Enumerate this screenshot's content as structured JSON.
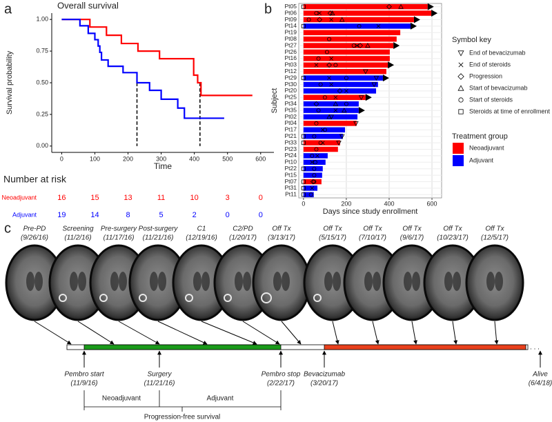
{
  "chart_data": [
    {
      "type": "step",
      "panel_label": "a",
      "title": "Overall survival",
      "xlabel": "Time",
      "ylabel": "Survival probability",
      "xlim": [
        -30,
        640
      ],
      "xticks": [
        0,
        100,
        200,
        300,
        400,
        500,
        600
      ],
      "ylim": [
        -0.05,
        1.05
      ],
      "yticks": [
        {
          "value": 0,
          "label": "0.00"
        },
        {
          "value": 0.25,
          "label": "0.25"
        },
        {
          "value": 0.5,
          "label": "0.50"
        },
        {
          "value": 0.75,
          "label": "0.75"
        },
        {
          "value": 1,
          "label": "1.00"
        }
      ],
      "series": [
        {
          "name": "Neoadjuvant",
          "color": "#ff0000",
          "x": [
            0,
            85,
            135,
            180,
            230,
            295,
            398,
            410,
            420,
            575
          ],
          "values": [
            1,
            0.94,
            0.875,
            0.81,
            0.75,
            0.69,
            0.56,
            0.5,
            0.4,
            0.4
          ]
        },
        {
          "name": "Adjuvant",
          "color": "#0000ff",
          "x": [
            0,
            55,
            80,
            100,
            110,
            115,
            120,
            140,
            185,
            227,
            265,
            300,
            350,
            370,
            490
          ],
          "values": [
            1,
            0.95,
            0.89,
            0.84,
            0.79,
            0.74,
            0.68,
            0.63,
            0.58,
            0.5,
            0.44,
            0.37,
            0.3,
            0.22,
            0.22
          ]
        }
      ],
      "medians": [
        227,
        417
      ],
      "risk_table": {
        "title": "Number at risk",
        "x": [
          0,
          100,
          200,
          300,
          400,
          500,
          600
        ],
        "rows": [
          {
            "name": "Neoadjuvant",
            "color": "#ff0000",
            "values": [
              16,
              15,
              13,
              11,
              10,
              3,
              0
            ]
          },
          {
            "name": "Adjuvant",
            "color": "#0000ff",
            "values": [
              19,
              14,
              8,
              5,
              2,
              0,
              0
            ]
          }
        ]
      }
    },
    {
      "type": "swimmer",
      "panel_label": "b",
      "xlabel": "Days since study enrollment",
      "ylabel": "Subject",
      "xlim": [
        -22,
        645
      ],
      "xticks": [
        0,
        200,
        400,
        600
      ],
      "grid": true,
      "subjects": [
        {
          "name": "Pt05",
          "color": "#ff0000",
          "days": 580,
          "ongoing": true,
          "events": {
            "square": [
              0
            ],
            "diamond": [
              400
            ],
            "triangle": [
              455
            ]
          }
        },
        {
          "name": "Pt06",
          "color": "#ff0000",
          "days": 597,
          "ongoing": true,
          "events": {
            "circle": [
              60
            ],
            "x": [
              75
            ],
            "diamond": [
              125
            ],
            "triangle": [
              135
            ]
          }
        },
        {
          "name": "Pt09",
          "color": "#ff0000",
          "days": 516,
          "ongoing": true,
          "events": {
            "circle": [
              25
            ],
            "diamond": [
              75
            ],
            "x": [
              130
            ],
            "triangle": [
              180
            ]
          }
        },
        {
          "name": "Pt14",
          "color": "#0000ff",
          "days": 500,
          "ongoing": true,
          "events": {
            "square": [
              0
            ],
            "circle": [
              260
            ],
            "x": [
              350
            ]
          }
        },
        {
          "name": "Pt19",
          "color": "#ff0000",
          "days": 452,
          "ongoing": false,
          "events": {}
        },
        {
          "name": "Pt08",
          "color": "#ff0000",
          "days": 435,
          "ongoing": false,
          "events": {
            "circle": [
              120
            ]
          }
        },
        {
          "name": "Pt27",
          "color": "#ff0000",
          "days": 420,
          "ongoing": true,
          "events": {
            "circle": [
              235
            ],
            "x": [
              250
            ],
            "diamond": [
              265
            ],
            "triangle": [
              300
            ]
          }
        },
        {
          "name": "Pt26",
          "color": "#ff0000",
          "days": 403,
          "ongoing": false,
          "events": {
            "circle": [
              110
            ]
          }
        },
        {
          "name": "Pt16",
          "color": "#ff0000",
          "days": 403,
          "ongoing": false,
          "events": {
            "circle": [
              70
            ],
            "x": [
              130
            ]
          }
        },
        {
          "name": "Pt03",
          "color": "#ff0000",
          "days": 394,
          "ongoing": true,
          "events": {
            "x": [
              60
            ],
            "diamond": [
              120
            ],
            "circle": [
              150
            ]
          }
        },
        {
          "name": "Pt12",
          "color": "#ff0000",
          "days": 387,
          "ongoing": false,
          "events": {
            "triangle-down": [
              290
            ]
          }
        },
        {
          "name": "Pt29",
          "color": "#0000ff",
          "days": 371,
          "ongoing": true,
          "events": {
            "square": [
              0
            ],
            "x": [
              120
            ],
            "circle": [
              200
            ],
            "triangle-down": [
              340
            ]
          }
        },
        {
          "name": "Pt30",
          "color": "#0000ff",
          "days": 348,
          "ongoing": false,
          "events": {
            "circle": [
              80
            ],
            "x": [
              130
            ],
            "triangle-down": [
              330
            ]
          }
        },
        {
          "name": "Pt20",
          "color": "#0000ff",
          "days": 339,
          "ongoing": false,
          "events": {
            "diamond": [
              170
            ],
            "x": [
              200
            ]
          }
        },
        {
          "name": "Pt25",
          "color": "#ff0000",
          "days": 290,
          "ongoing": true,
          "events": {
            "circle": [
              100
            ],
            "x": [
              150
            ],
            "triangle-down": [
              270
            ]
          }
        },
        {
          "name": "Pt34",
          "color": "#0000ff",
          "days": 258,
          "ongoing": false,
          "events": {
            "diamond": [
              60
            ],
            "triangle": [
              150
            ],
            "circle": [
              200
            ]
          }
        },
        {
          "name": "Pt35",
          "color": "#0000ff",
          "days": 258,
          "ongoing": true,
          "events": {
            "circle": [
              70
            ],
            "x": [
              150
            ],
            "triangle": [
              190
            ]
          }
        },
        {
          "name": "Pt02",
          "color": "#0000ff",
          "days": 252,
          "ongoing": false,
          "events": {
            "triangle": [
              120
            ],
            "triangle-down": [
              130
            ]
          }
        },
        {
          "name": "Pt04",
          "color": "#ff0000",
          "days": 248,
          "ongoing": false,
          "events": {
            "circle": [
              60
            ],
            "triangle-down": [
              245
            ]
          }
        },
        {
          "name": "Pt17",
          "color": "#0000ff",
          "days": 194,
          "ongoing": false,
          "events": {
            "x": [
              90
            ],
            "circle": [
              100
            ]
          }
        },
        {
          "name": "Pt21",
          "color": "#0000ff",
          "days": 184,
          "ongoing": false,
          "events": {
            "square": [
              0
            ],
            "circle": [
              50
            ],
            "triangle-down": [
              180
            ]
          }
        },
        {
          "name": "Pt33",
          "color": "#ff0000",
          "days": 171,
          "ongoing": false,
          "events": {
            "square": [
              0
            ],
            "circle": [
              80
            ],
            "x": [
              90
            ],
            "triangle-down": [
              165
            ]
          }
        },
        {
          "name": "Pt23",
          "color": "#ff0000",
          "days": 161,
          "ongoing": false,
          "events": {
            "circle": [
              60
            ]
          }
        },
        {
          "name": "Pt24",
          "color": "#0000ff",
          "days": 113,
          "ongoing": false,
          "events": {
            "circle": [
              40
            ],
            "x": [
              65
            ]
          }
        },
        {
          "name": "Pt10",
          "color": "#0000ff",
          "days": 103,
          "ongoing": false,
          "events": {
            "x": [
              40
            ],
            "circle": [
              55
            ]
          }
        },
        {
          "name": "Pt22",
          "color": "#0000ff",
          "days": 90,
          "ongoing": false,
          "events": {
            "square": [
              0
            ],
            "circle": [
              50
            ]
          }
        },
        {
          "name": "Pt15",
          "color": "#0000ff",
          "days": 87,
          "ongoing": false,
          "events": {
            "circle": [
              50
            ]
          }
        },
        {
          "name": "Pt07",
          "color": "#ff0000",
          "days": 84,
          "ongoing": false,
          "events": {
            "square": [
              0
            ],
            "diamond": [
              45
            ],
            "circle": [
              50
            ]
          }
        },
        {
          "name": "Pt31",
          "color": "#0000ff",
          "days": 65,
          "ongoing": false,
          "events": {
            "square": [
              0
            ],
            "x": [
              40
            ]
          }
        },
        {
          "name": "Pt11",
          "color": "#0000ff",
          "days": 48,
          "ongoing": false,
          "events": {
            "square": [
              0
            ],
            "circle": [
              35
            ]
          }
        }
      ],
      "symbol_key": {
        "title": "Symbol key",
        "items": [
          {
            "shape": "triangle-down",
            "label": "End of bevacizumab"
          },
          {
            "shape": "x",
            "label": "End of steroids"
          },
          {
            "shape": "diamond",
            "label": "Progression"
          },
          {
            "shape": "triangle",
            "label": "Start of bevacizumab"
          },
          {
            "shape": "circle",
            "label": "Start of steroids"
          },
          {
            "shape": "square",
            "label": "Steroids at time of enrollment"
          }
        ]
      },
      "legend": {
        "title": "Treatment group",
        "items": [
          {
            "name": "Neoadjuvant",
            "color": "#ff0000"
          },
          {
            "name": "Adjuvant",
            "color": "#0000ff"
          }
        ]
      }
    }
  ],
  "timeline": {
    "panel_label": "c",
    "scans": [
      {
        "label": "Pre-PD",
        "date": "(9/26/16)"
      },
      {
        "label": "Screening",
        "date": "(11/2/16)"
      },
      {
        "label": "Pre-surgery",
        "date": "(11/17/16)"
      },
      {
        "label": "Post-surgery",
        "date": "(11/21/16)"
      },
      {
        "label": "C1",
        "date": "(12/19/16)"
      },
      {
        "label": "C2/PD",
        "date": "(1/20/17)"
      },
      {
        "label": "Off Tx",
        "date": "(3/13/17)"
      },
      {
        "label": "Off Tx",
        "date": "(5/15/17)"
      },
      {
        "label": "Off Tx",
        "date": "(7/10/17)"
      },
      {
        "label": "Off Tx",
        "date": "(9/6/17)"
      },
      {
        "label": "Off Tx",
        "date": "(10/23/17)"
      },
      {
        "label": "Off Tx",
        "date": "(12/5/17)"
      }
    ],
    "events": [
      {
        "label": "Pembro start",
        "date": "(11/9/16)"
      },
      {
        "label": "Surgery",
        "date": "(11/21/16)"
      },
      {
        "label": "Pembro stop",
        "date": "(2/22/17)"
      },
      {
        "label": "Bevacizumab",
        "date": "(3/20/17)"
      },
      {
        "label": "Alive",
        "date": "(6/4/18)"
      }
    ],
    "ellipsis": ". . .",
    "phases": {
      "neoadjuvant": "Neoadjuvant",
      "adjuvant": "Adjuvant",
      "pfs": "Progression-free survival"
    }
  }
}
